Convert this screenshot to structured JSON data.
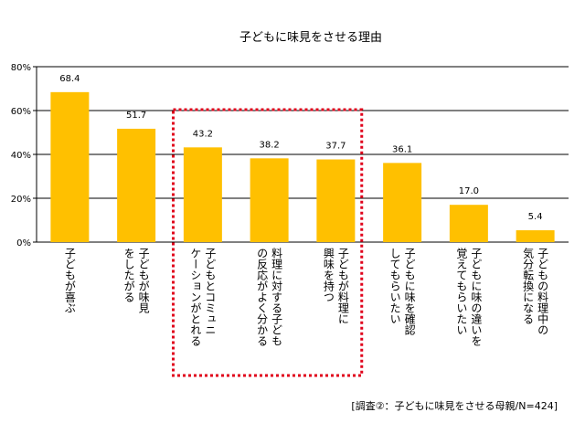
{
  "chart_data": {
    "type": "bar",
    "title": "子どもに味見をさせる理由",
    "categories": [
      "子どもが喜ぶ",
      "子どもが味見\nをしたがる",
      "子どもとコミュニ\nケーションがとれる",
      "料理に対する子ども\nの反応がよく分かる",
      "子どもが料理に\n興味を持つ",
      "子どもに味を確認\nしてもらいたい",
      "子どもに味の違いを\n覚えてもらいたい",
      "子どもの料理中の\n気分転換になる"
    ],
    "values": [
      68.4,
      51.7,
      43.2,
      38.2,
      37.7,
      36.1,
      17.0,
      5.4
    ],
    "value_labels": [
      "68.4",
      "51.7",
      "43.2",
      "38.2",
      "37.7",
      "36.1",
      "17.0",
      "5.4"
    ],
    "yticks": [
      "0%",
      "20%",
      "40%",
      "60%",
      "80%"
    ],
    "ytick_values": [
      0,
      20,
      40,
      60,
      80
    ],
    "ylim": [
      0,
      80
    ],
    "grid": true,
    "bar_color": "#FFC000",
    "highlight_color": "#E0001B",
    "highlight_categories": [
      2,
      3,
      4
    ],
    "xlabel": "",
    "ylabel": ""
  },
  "note": "[調査②：子どもに味見をさせる母親/N=424]"
}
